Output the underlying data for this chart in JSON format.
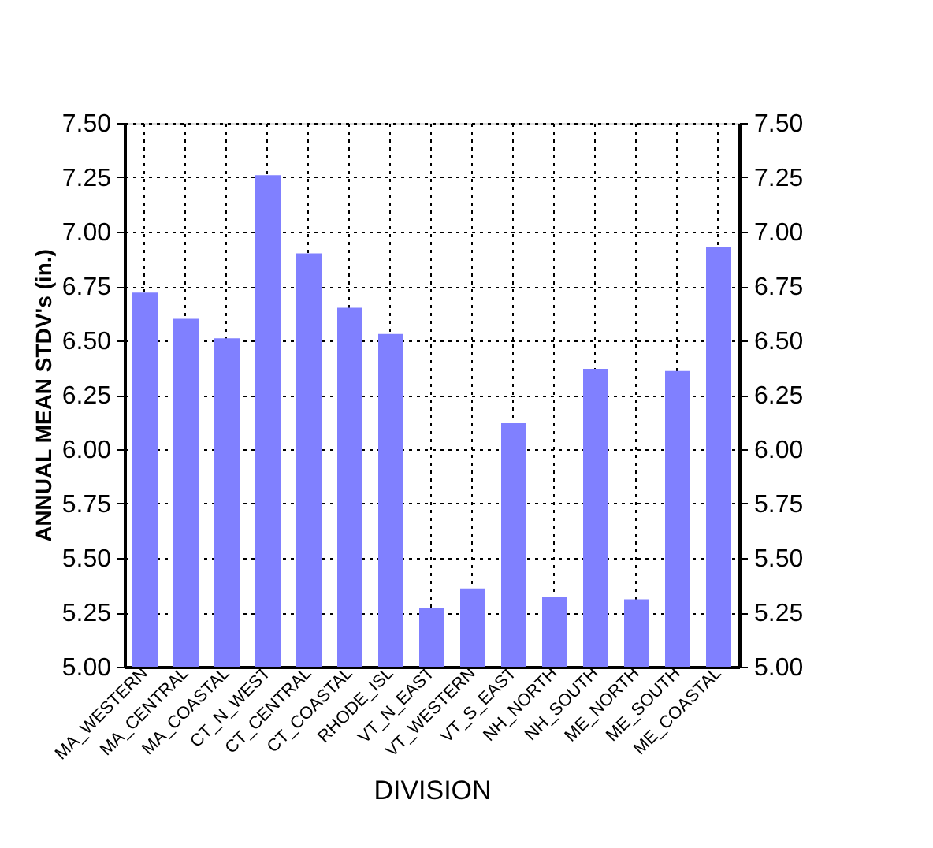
{
  "chart_data": {
    "type": "bar",
    "xlabel": "DIVISION",
    "ylabel": "ANNUAL MEAN STDV's (in.)",
    "categories": [
      "MA_WESTERN",
      "MA_CENTRAL",
      "MA_COASTAL",
      "CT_N_WEST",
      "CT_CENTRAL",
      "CT_COASTAL",
      "RHODE_ISL",
      "VT_N_EAST",
      "VT_WESTERN",
      "VT_S_EAST",
      "NH_NORTH",
      "NH_SOUTH",
      "ME_NORTH",
      "ME_SOUTH",
      "ME_COASTAL"
    ],
    "values": [
      6.72,
      6.6,
      6.51,
      7.26,
      6.9,
      6.65,
      6.53,
      5.27,
      5.36,
      6.12,
      5.32,
      6.37,
      5.31,
      6.36,
      6.93
    ],
    "color": "#8080ff",
    "ylim": [
      5.0,
      7.5
    ],
    "yticks": [
      {
        "value": 5.0,
        "label": "5.00"
      },
      {
        "value": 5.25,
        "label": "5.25"
      },
      {
        "value": 5.5,
        "label": "5.50"
      },
      {
        "value": 5.75,
        "label": "5.75"
      },
      {
        "value": 6.0,
        "label": "6.00"
      },
      {
        "value": 6.25,
        "label": "6.25"
      },
      {
        "value": 6.5,
        "label": "6.50"
      },
      {
        "value": 6.75,
        "label": "6.75"
      },
      {
        "value": 7.0,
        "label": "7.00"
      },
      {
        "value": 7.25,
        "label": "7.25"
      },
      {
        "value": 7.5,
        "label": "7.50"
      }
    ],
    "y2lim": [
      5.0,
      7.5
    ],
    "y2ticks": [
      {
        "value": 5.0,
        "label": "5.00"
      },
      {
        "value": 5.25,
        "label": "5.25"
      },
      {
        "value": 5.5,
        "label": "5.50"
      },
      {
        "value": 5.75,
        "label": "5.75"
      },
      {
        "value": 6.0,
        "label": "6.00"
      },
      {
        "value": 6.25,
        "label": "6.25"
      },
      {
        "value": 6.5,
        "label": "6.50"
      },
      {
        "value": 6.75,
        "label": "6.75"
      },
      {
        "value": 7.0,
        "label": "7.00"
      },
      {
        "value": 7.25,
        "label": "7.25"
      },
      {
        "value": 7.5,
        "label": "7.50"
      }
    ],
    "grid": true
  }
}
